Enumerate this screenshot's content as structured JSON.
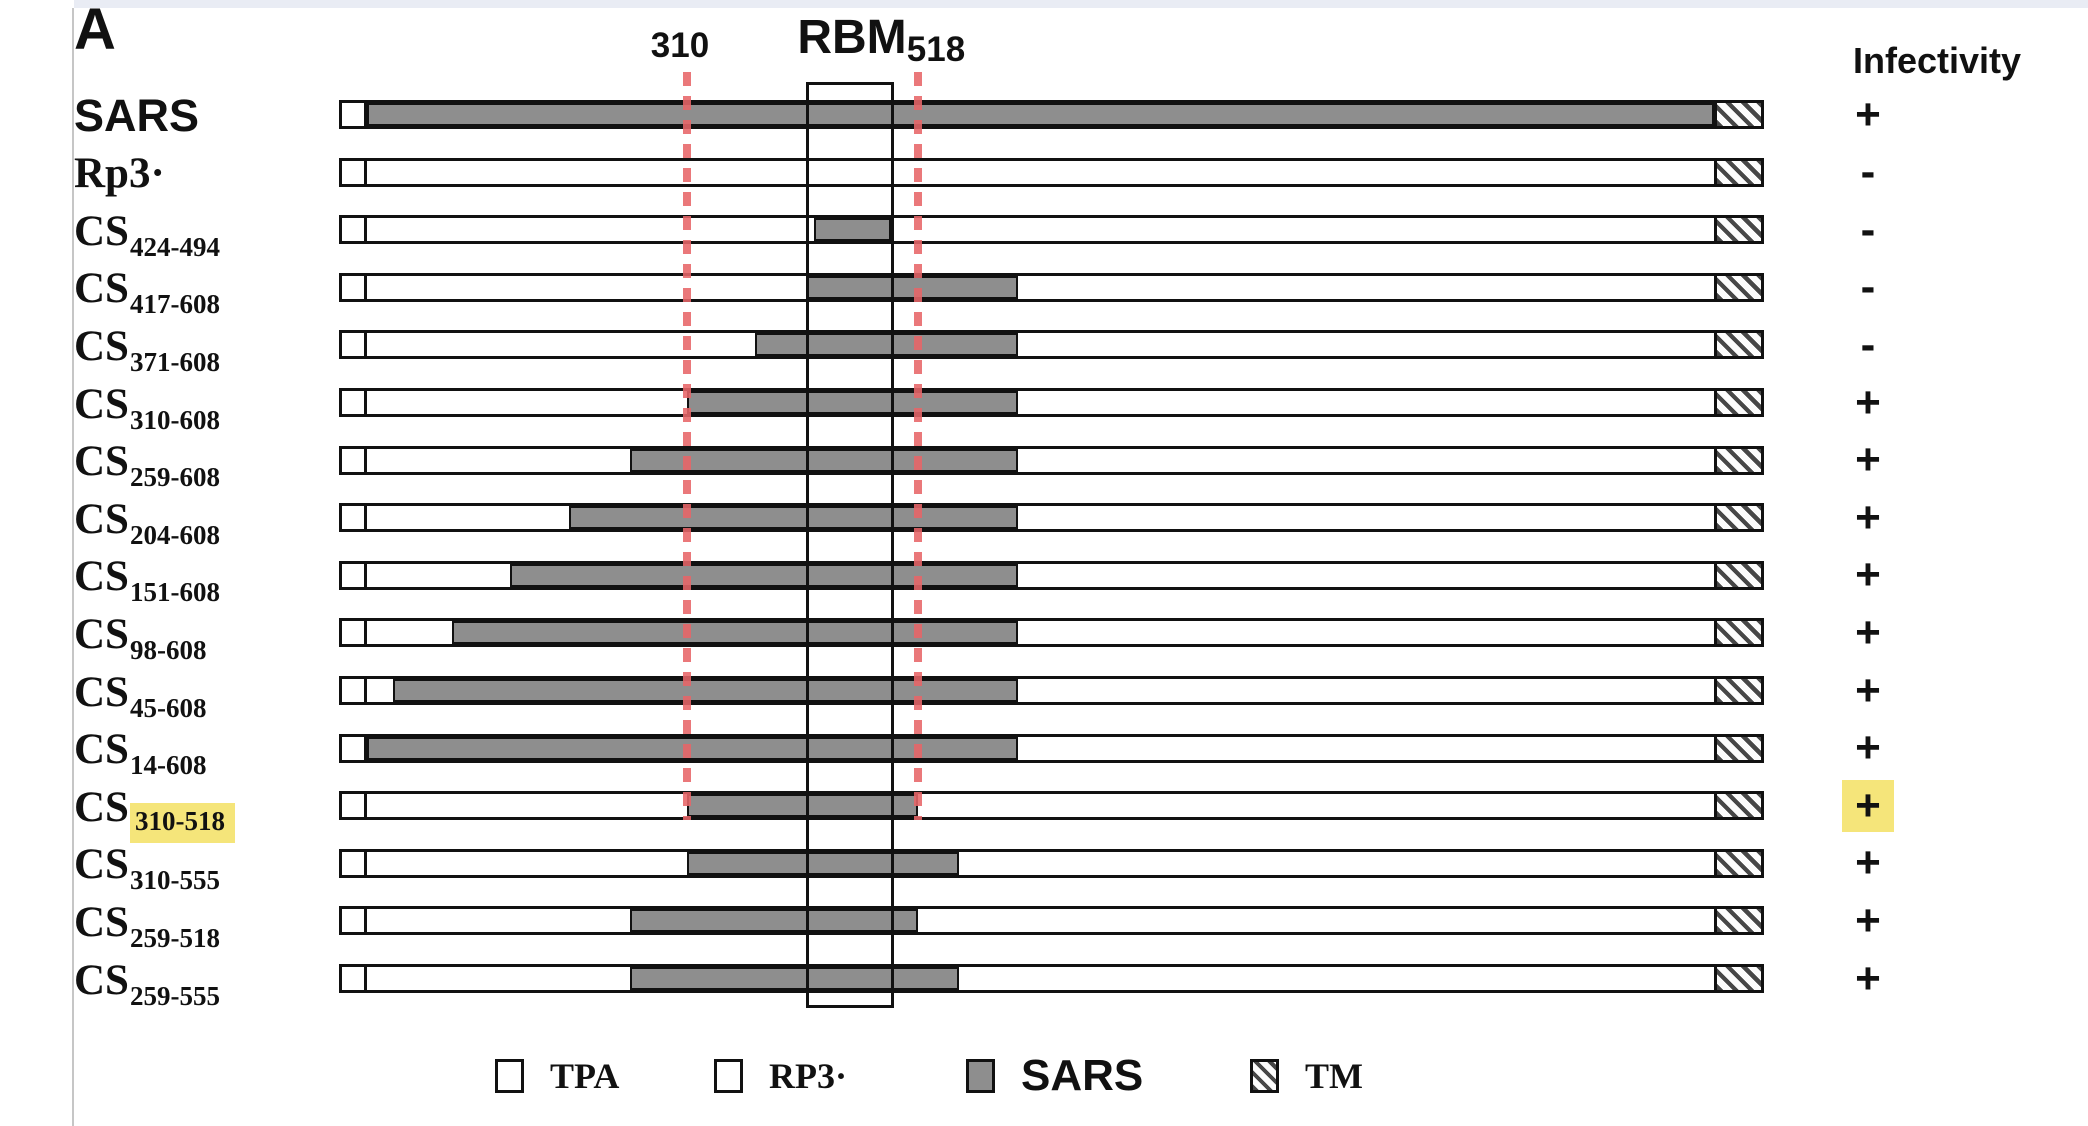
{
  "panel": {
    "label": "A"
  },
  "annotations": {
    "left_boundary_label": "310",
    "rbm_label": "RBM",
    "right_boundary_label": "518",
    "infectivity_header": "Infectivity"
  },
  "colors": {
    "sars_gray": "#8e8e8e",
    "dash_red": "#e76568",
    "highlight_yellow": "#f5e57a",
    "top_strip": "#e9ecf4"
  },
  "legend": {
    "items": [
      {
        "label": "TPA",
        "fill": "white"
      },
      {
        "label": "RP3·",
        "fill": "white"
      },
      {
        "label": "SARS",
        "fill": "gray"
      },
      {
        "label": "TM",
        "fill": "hatch"
      }
    ]
  },
  "chart_data": {
    "type": "construct-schematic",
    "description": "Chimeric spike protein constructs; bar segments TPA / RP3 backbone (white) / SARS sequence (gray) / TM (hatched); dashed lines mark residues 310 and 518; boxed region labeled RBM.",
    "x_markers": [
      310,
      518
    ],
    "rbm_boxed_region": "RBM",
    "rows": [
      {
        "name": "SARS",
        "label_style": "sans",
        "subscript": null,
        "sars_segment": "full",
        "infectivity": "+",
        "highlight": false
      },
      {
        "name": "Rp3·",
        "label_style": "serif",
        "subscript": null,
        "sars_segment": null,
        "infectivity": "-",
        "highlight": false
      },
      {
        "name": "CS",
        "label_style": "serif",
        "subscript": "424-494",
        "sars_segment": [
          424,
          494
        ],
        "infectivity": "-",
        "highlight": false
      },
      {
        "name": "CS",
        "label_style": "serif",
        "subscript": "417-608",
        "sars_segment": [
          417,
          608
        ],
        "infectivity": "-",
        "highlight": false
      },
      {
        "name": "CS",
        "label_style": "serif",
        "subscript": "371-608",
        "sars_segment": [
          371,
          608
        ],
        "infectivity": "-",
        "highlight": false
      },
      {
        "name": "CS",
        "label_style": "serif",
        "subscript": "310-608",
        "sars_segment": [
          310,
          608
        ],
        "infectivity": "+",
        "highlight": false
      },
      {
        "name": "CS",
        "label_style": "serif",
        "subscript": "259-608",
        "sars_segment": [
          259,
          608
        ],
        "infectivity": "+",
        "highlight": false
      },
      {
        "name": "CS",
        "label_style": "serif",
        "subscript": "204-608",
        "sars_segment": [
          204,
          608
        ],
        "infectivity": "+",
        "highlight": false
      },
      {
        "name": "CS",
        "label_style": "serif",
        "subscript": "151-608",
        "sars_segment": [
          151,
          608
        ],
        "infectivity": "+",
        "highlight": false
      },
      {
        "name": "CS",
        "label_style": "serif",
        "subscript": "98-608",
        "sars_segment": [
          98,
          608
        ],
        "infectivity": "+",
        "highlight": false
      },
      {
        "name": "CS",
        "label_style": "serif",
        "subscript": "45-608",
        "sars_segment": [
          45,
          608
        ],
        "infectivity": "+",
        "highlight": false
      },
      {
        "name": "CS",
        "label_style": "serif",
        "subscript": "14-608",
        "sars_segment": [
          14,
          608
        ],
        "infectivity": "+",
        "highlight": false
      },
      {
        "name": "CS",
        "label_style": "serif",
        "subscript": "310-518",
        "sars_segment": [
          310,
          518
        ],
        "infectivity": "+",
        "highlight": true
      },
      {
        "name": "CS",
        "label_style": "serif",
        "subscript": "310-555",
        "sars_segment": [
          310,
          555
        ],
        "infectivity": "+",
        "highlight": false
      },
      {
        "name": "CS",
        "label_style": "serif",
        "subscript": "259-518",
        "sars_segment": [
          259,
          518
        ],
        "infectivity": "+",
        "highlight": false
      },
      {
        "name": "CS",
        "label_style": "serif",
        "subscript": "259-555",
        "sars_segment": [
          259,
          555
        ],
        "infectivity": "+",
        "highlight": false
      }
    ]
  }
}
